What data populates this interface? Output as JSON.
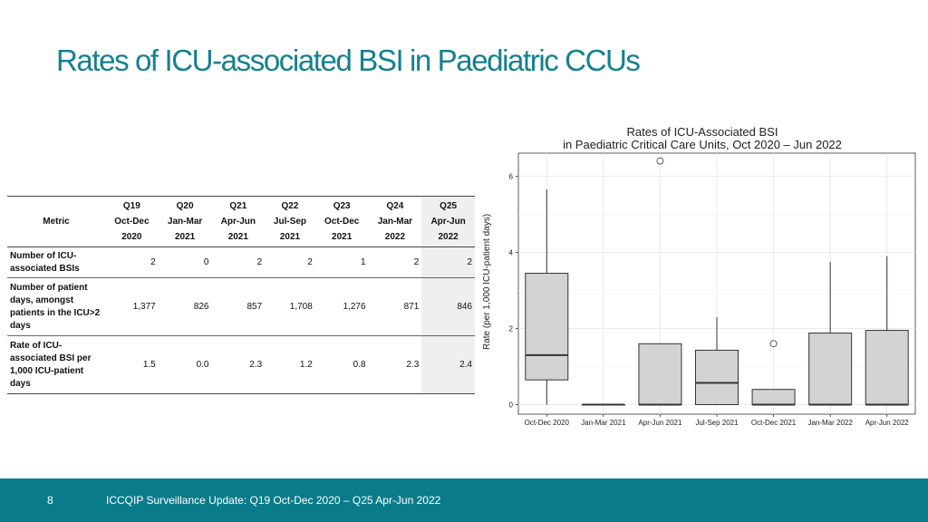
{
  "slide": {
    "title": "Rates of ICU-associated BSI in Paediatric CCUs",
    "page_number": "8",
    "footer": "ICCQIP Surveillance Update: Q19 Oct-Dec 2020 – Q25 Apr-Jun 2022"
  },
  "table": {
    "metric_header": "Metric",
    "columns": [
      {
        "q": "Q19",
        "months": "Oct-Dec",
        "year": "2020"
      },
      {
        "q": "Q20",
        "months": "Jan-Mar",
        "year": "2021"
      },
      {
        "q": "Q21",
        "months": "Apr-Jun",
        "year": "2021"
      },
      {
        "q": "Q22",
        "months": "Jul-Sep",
        "year": "2021"
      },
      {
        "q": "Q23",
        "months": "Oct-Dec",
        "year": "2021"
      },
      {
        "q": "Q24",
        "months": "Jan-Mar",
        "year": "2022"
      },
      {
        "q": "Q25",
        "months": "Apr-Jun",
        "year": "2022"
      }
    ],
    "rows": [
      {
        "label": "Number of ICU-associated BSIs",
        "values": [
          "2",
          "0",
          "2",
          "2",
          "1",
          "2",
          "2"
        ]
      },
      {
        "label": "Number of patient days, amongst patients in the ICU>2 days",
        "values": [
          "1,377",
          "826",
          "857",
          "1,708",
          "1,276",
          "871",
          "846"
        ]
      },
      {
        "label": "Rate of ICU-associated BSI per 1,000 ICU-patient days",
        "values": [
          "1.5",
          "0.0",
          "2.3",
          "1.2",
          "0.8",
          "2.3",
          "2.4"
        ]
      }
    ]
  },
  "chart_data": {
    "type": "boxplot",
    "title": "Rates of ICU-Associated BSI",
    "subtitle": "in Paediatric Critical Care Units, Oct 2020 – Jun 2022",
    "xlabel": "",
    "ylabel": "Rate (per 1,000 ICU-patient days)",
    "ylim": [
      -0.25,
      6.7
    ],
    "yticks": [
      0,
      2,
      4,
      6
    ],
    "grid": true,
    "colors": {
      "box": "#d3d3d3",
      "stroke": "#333333",
      "grid": "#ebebeb"
    },
    "categories": [
      "Oct-Dec 2020",
      "Jan-Mar 2021",
      "Apr-Jun 2021",
      "Jul-Sep 2021",
      "Oct-Dec 2021",
      "Jan-Mar 2022",
      "Apr-Jun 2022"
    ],
    "boxes": [
      {
        "min": 0.0,
        "q1": 0.65,
        "median": 1.3,
        "q3": 3.45,
        "max": 5.65,
        "outliers": []
      },
      {
        "min": 0.0,
        "q1": 0.0,
        "median": 0.0,
        "q3": 0.0,
        "max": 0.0,
        "outliers": []
      },
      {
        "min": 0.0,
        "q1": 0.0,
        "median": 0.0,
        "q3": 1.6,
        "max": 1.6,
        "outliers": [
          6.4
        ]
      },
      {
        "min": 0.0,
        "q1": 0.0,
        "median": 0.57,
        "q3": 1.43,
        "max": 2.3,
        "outliers": []
      },
      {
        "min": 0.0,
        "q1": 0.0,
        "median": 0.0,
        "q3": 0.4,
        "max": 0.4,
        "outliers": [
          1.6
        ]
      },
      {
        "min": 0.0,
        "q1": 0.0,
        "median": 0.0,
        "q3": 1.88,
        "max": 3.75,
        "outliers": []
      },
      {
        "min": 0.0,
        "q1": 0.0,
        "median": 0.0,
        "q3": 1.95,
        "max": 3.9,
        "outliers": []
      }
    ]
  }
}
